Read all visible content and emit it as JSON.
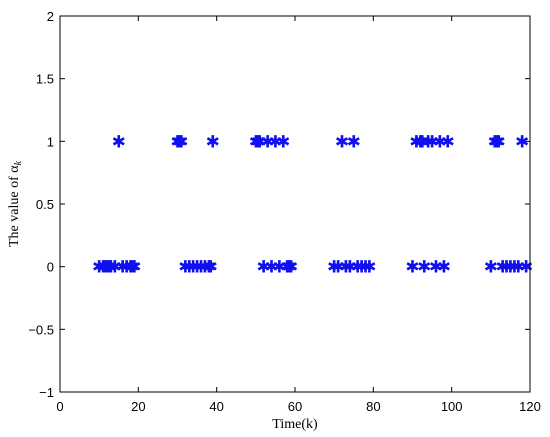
{
  "chart_data": {
    "type": "scatter",
    "title": "",
    "xlabel": "Time(k)",
    "ylabel": "The value of α",
    "ylabel_subscript": "k",
    "xlim": [
      0,
      120
    ],
    "ylim": [
      -1,
      2
    ],
    "xticks": [
      0,
      20,
      40,
      60,
      80,
      100,
      120
    ],
    "yticks": [
      -1,
      -0.5,
      0,
      0.5,
      1,
      1.5,
      2
    ],
    "ytick_labels": [
      "−1",
      "−0.5",
      "0",
      "0.5",
      "1",
      "1.5",
      "2"
    ],
    "grid": false,
    "marker": "*",
    "marker_glyph": "✱",
    "color": "#1010ee",
    "series": [
      {
        "values_x": [
          10,
          11,
          11.5,
          12,
          12.5,
          13,
          14,
          16,
          17,
          18,
          18.5,
          19,
          32,
          33,
          34,
          35,
          36,
          37,
          38,
          38.5,
          52,
          54,
          56,
          58,
          58.5,
          59,
          70,
          71,
          73,
          74,
          76,
          77,
          78,
          79,
          90,
          93,
          96,
          98,
          110,
          113,
          114,
          115,
          116,
          117,
          119
        ],
        "values_y": [
          0,
          0,
          0,
          0,
          0,
          0,
          0,
          0,
          0,
          0,
          0,
          0,
          0,
          0,
          0,
          0,
          0,
          0,
          0,
          0,
          0,
          0,
          0,
          0,
          0,
          0,
          0,
          0,
          0,
          0,
          0,
          0,
          0,
          0,
          0,
          0,
          0,
          0,
          0,
          0,
          0,
          0,
          0,
          0,
          0
        ]
      },
      {
        "values_x": [
          15,
          30,
          30.5,
          31,
          39,
          50,
          50.5,
          51,
          53,
          55,
          57,
          72,
          75,
          91,
          92,
          92.5,
          94,
          95,
          97,
          99,
          111,
          111.5,
          112,
          118
        ],
        "values_y": [
          1,
          1,
          1,
          1,
          1,
          1,
          1,
          1,
          1,
          1,
          1,
          1,
          1,
          1,
          1,
          1,
          1,
          1,
          1,
          1,
          1,
          1,
          1,
          1
        ]
      }
    ]
  }
}
